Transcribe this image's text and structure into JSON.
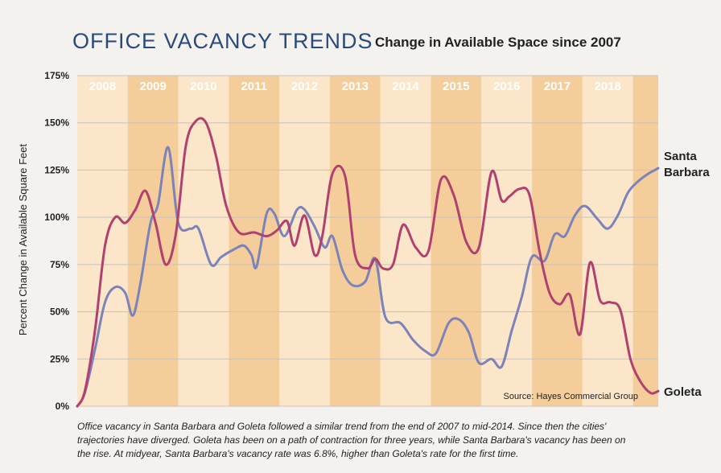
{
  "header": {
    "title": "OFFICE VACANCY TRENDS",
    "subtitle": "Change in Available Space since 2007"
  },
  "caption": "Office vacancy in Santa Barbara and Goleta followed a similar trend from the end of 2007 to mid-2014. Since then the cities' trajectories have diverged. Goleta has been on a path of contraction for three years, while Santa Barbara's vacancy has been on the rise. At midyear, Santa Barbara's vacancy rate was 6.8%, higher than Goleta's rate for the first time.",
  "colors": {
    "band_light": "#fbe6c9",
    "band_dark": "#f4cd9a",
    "year_text": "#ffffff",
    "santa_barbara": "#7c83b8",
    "goleta": "#b0416f"
  },
  "chart_data": {
    "type": "line",
    "title": "Change in Available Space since 2007",
    "ylabel": "Percent Change in Available Square Feet",
    "xlabel": "",
    "xlim": [
      2008,
      2019.5
    ],
    "ylim": [
      0,
      175
    ],
    "yticks": [
      "0%",
      "25%",
      "50%",
      "75%",
      "100%",
      "125%",
      "150%",
      "175%"
    ],
    "ytick_values": [
      0,
      25,
      50,
      75,
      100,
      125,
      150,
      175
    ],
    "years": [
      "2008",
      "2009",
      "2010",
      "2011",
      "2012",
      "2013",
      "2014",
      "2015",
      "2016",
      "2017",
      "2018"
    ],
    "grid": true,
    "source": "Source: Hayes Commercial Group",
    "series": [
      {
        "name": "Santa Barbara",
        "label_line1": "Santa",
        "label_line2": "Barbara",
        "x": [
          2008.0,
          2008.15,
          2008.35,
          2008.55,
          2008.75,
          2008.95,
          2009.1,
          2009.25,
          2009.45,
          2009.6,
          2009.8,
          2010.0,
          2010.25,
          2010.4,
          2010.65,
          2010.85,
          2011.1,
          2011.3,
          2011.45,
          2011.55,
          2011.75,
          2011.9,
          2012.1,
          2012.35,
          2012.5,
          2012.7,
          2012.9,
          2013.05,
          2013.25,
          2013.45,
          2013.7,
          2013.9,
          2014.1,
          2014.4,
          2014.65,
          2014.9,
          2015.1,
          2015.35,
          2015.55,
          2015.75,
          2015.95,
          2016.2,
          2016.4,
          2016.6,
          2016.8,
          2017.0,
          2017.25,
          2017.45,
          2017.65,
          2017.85,
          2018.05,
          2018.3,
          2018.5,
          2018.7,
          2018.9,
          2019.1,
          2019.3,
          2019.5
        ],
        "values": [
          0,
          7,
          30,
          55,
          63,
          60,
          48,
          65,
          97,
          107,
          137,
          97,
          94,
          94,
          75,
          79,
          83,
          85,
          80,
          74,
          102,
          102,
          90,
          104,
          104,
          95,
          84,
          90,
          72,
          64,
          66,
          78,
          47,
          44,
          35,
          29,
          28,
          44,
          46,
          39,
          23,
          25,
          21,
          40,
          58,
          79,
          77,
          91,
          90,
          101,
          106,
          99,
          94,
          101,
          113,
          119,
          123,
          126
        ]
      },
      {
        "name": "Goleta",
        "label_line1": "Goleta",
        "label_line2": "",
        "x": [
          2008.0,
          2008.15,
          2008.35,
          2008.55,
          2008.75,
          2008.95,
          2009.15,
          2009.35,
          2009.55,
          2009.75,
          2009.95,
          2010.15,
          2010.35,
          2010.55,
          2010.75,
          2010.95,
          2011.2,
          2011.5,
          2011.75,
          2011.95,
          2012.15,
          2012.3,
          2012.5,
          2012.7,
          2012.85,
          2013.05,
          2013.3,
          2013.5,
          2013.75,
          2013.9,
          2014.05,
          2014.25,
          2014.45,
          2014.7,
          2014.95,
          2015.2,
          2015.45,
          2015.7,
          2015.95,
          2016.2,
          2016.4,
          2016.55,
          2016.75,
          2016.95,
          2017.15,
          2017.35,
          2017.55,
          2017.75,
          2017.95,
          2018.15,
          2018.35,
          2018.55,
          2018.75,
          2018.95,
          2019.15,
          2019.35,
          2019.5
        ],
        "values": [
          0,
          8,
          40,
          85,
          100,
          97,
          104,
          114,
          97,
          75,
          91,
          138,
          151,
          150,
          132,
          106,
          92,
          92,
          90,
          93,
          98,
          85,
          101,
          80,
          90,
          123,
          122,
          80,
          73,
          78,
          73,
          75,
          96,
          84,
          82,
          120,
          112,
          87,
          84,
          124,
          109,
          111,
          115,
          112,
          82,
          60,
          54,
          59,
          38,
          76,
          56,
          55,
          51,
          25,
          13,
          7,
          8
        ]
      }
    ]
  }
}
